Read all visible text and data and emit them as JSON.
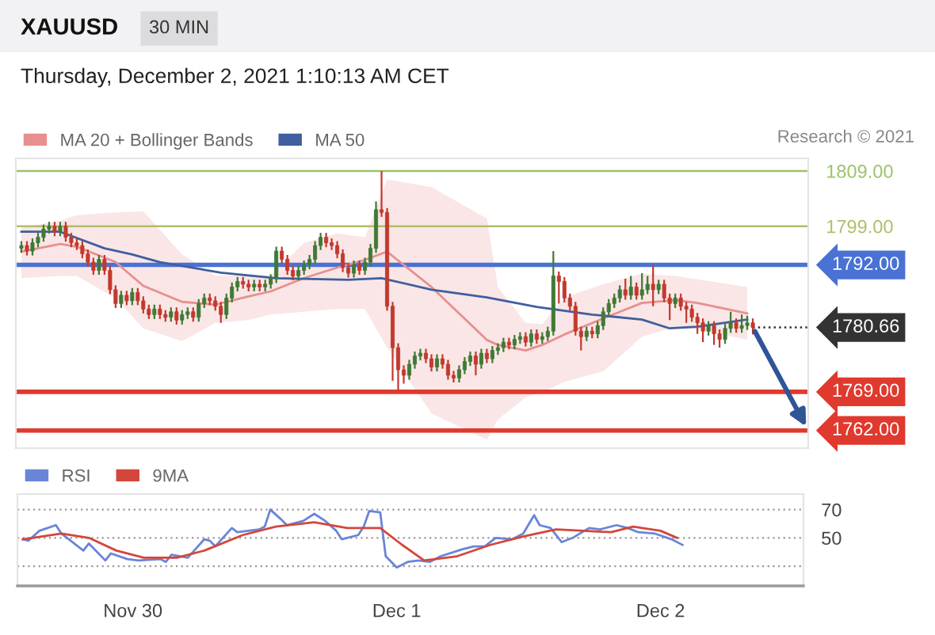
{
  "chart_data": [
    {
      "type": "candlestick",
      "title": "XAUUSD",
      "subtitle": "30 MIN",
      "annotations": [
        "Thursday, December 2, 2021 1:10:13 AM CET",
        "Research © 2021"
      ],
      "x": [
        "2021-11-29T14:00",
        "2021-11-29T14:30",
        "2021-11-29T15:00",
        "2021-11-29T15:30",
        "2021-11-29T16:00",
        "2021-11-29T16:30",
        "2021-11-29T17:00",
        "2021-11-29T17:30",
        "2021-11-29T18:00",
        "2021-11-29T18:30",
        "2021-11-29T19:00",
        "2021-11-29T19:30",
        "2021-11-29T20:00",
        "2021-11-29T20:30",
        "2021-11-29T21:00",
        "2021-11-29T21:30",
        "2021-11-29T22:00",
        "2021-11-29T22:30",
        "2021-11-29T23:00",
        "2021-11-29T23:30",
        "2021-11-30T00:00",
        "2021-11-30T00:30",
        "2021-11-30T01:00",
        "2021-11-30T01:30",
        "2021-11-30T02:00",
        "2021-11-30T02:30",
        "2021-11-30T03:00",
        "2021-11-30T03:30",
        "2021-11-30T04:00",
        "2021-11-30T04:30",
        "2021-11-30T05:00",
        "2021-11-30T05:30",
        "2021-11-30T06:00",
        "2021-11-30T06:30",
        "2021-11-30T07:00",
        "2021-11-30T07:30",
        "2021-11-30T08:00",
        "2021-11-30T08:30",
        "2021-11-30T09:00",
        "2021-11-30T09:30",
        "2021-11-30T10:00",
        "2021-11-30T10:30",
        "2021-11-30T11:00",
        "2021-11-30T11:30",
        "2021-11-30T12:00",
        "2021-11-30T12:30",
        "2021-11-30T13:00",
        "2021-11-30T13:30",
        "2021-11-30T14:00",
        "2021-11-30T14:30",
        "2021-11-30T15:00",
        "2021-11-30T15:30",
        "2021-11-30T16:00",
        "2021-11-30T16:30",
        "2021-11-30T17:00",
        "2021-11-30T17:30",
        "2021-11-30T18:00",
        "2021-11-30T18:30",
        "2021-11-30T19:00",
        "2021-11-30T19:30",
        "2021-11-30T20:00",
        "2021-11-30T20:30",
        "2021-11-30T21:00",
        "2021-11-30T21:30",
        "2021-11-30T22:00",
        "2021-11-30T22:30",
        "2021-11-30T23:00",
        "2021-11-30T23:30",
        "2021-12-01T00:00",
        "2021-12-01T00:30",
        "2021-12-01T01:00",
        "2021-12-01T01:30",
        "2021-12-01T02:00",
        "2021-12-01T02:30",
        "2021-12-01T03:00",
        "2021-12-01T03:30",
        "2021-12-01T04:00",
        "2021-12-01T04:30",
        "2021-12-01T05:00",
        "2021-12-01T05:30",
        "2021-12-01T06:00",
        "2021-12-01T06:30",
        "2021-12-01T07:00",
        "2021-12-01T07:30",
        "2021-12-01T08:00",
        "2021-12-01T08:30",
        "2021-12-01T09:00",
        "2021-12-01T09:30",
        "2021-12-01T10:00",
        "2021-12-01T10:30",
        "2021-12-01T11:00",
        "2021-12-01T11:30",
        "2021-12-01T12:00",
        "2021-12-01T12:30",
        "2021-12-01T13:00",
        "2021-12-01T13:30",
        "2021-12-01T14:00",
        "2021-12-01T14:30",
        "2021-12-01T15:00",
        "2021-12-01T15:30",
        "2021-12-01T16:00",
        "2021-12-01T16:30",
        "2021-12-01T17:00",
        "2021-12-01T17:30",
        "2021-12-01T18:00",
        "2021-12-01T18:30",
        "2021-12-01T19:00",
        "2021-12-01T19:30",
        "2021-12-01T20:00",
        "2021-12-01T20:30",
        "2021-12-01T21:00",
        "2021-12-01T21:30",
        "2021-12-01T22:00",
        "2021-12-01T22:30",
        "2021-12-01T23:00",
        "2021-12-01T23:30",
        "2021-12-02T00:00",
        "2021-12-02T00:30",
        "2021-12-02T01:00",
        "2021-12-02T01:30",
        "2021-12-02T02:00",
        "2021-12-02T02:30",
        "2021-12-02T03:00",
        "2021-12-02T03:30",
        "2021-12-02T04:00",
        "2021-12-02T04:30",
        "2021-12-02T05:00",
        "2021-12-02T05:30",
        "2021-12-02T06:00",
        "2021-12-02T06:30",
        "2021-12-02T07:00",
        "2021-12-02T07:30",
        "2021-12-02T08:00"
      ],
      "ohlc": [
        [
          1795.0,
          1796.3,
          1794.2,
          1795.5
        ],
        [
          1795.5,
          1796.3,
          1793.7,
          1794.5
        ],
        [
          1794.5,
          1796.8,
          1793.7,
          1796.0
        ],
        [
          1796.0,
          1797.8,
          1795.2,
          1797.0
        ],
        [
          1797.0,
          1799.3,
          1796.2,
          1798.5
        ],
        [
          1798.5,
          1799.8,
          1797.7,
          1799.0
        ],
        [
          1799.0,
          1799.8,
          1797.2,
          1798.0
        ],
        [
          1798.0,
          1799.8,
          1797.2,
          1799.0
        ],
        [
          1799.0,
          1799.8,
          1796.2,
          1797.0
        ],
        [
          1797.0,
          1797.8,
          1795.2,
          1796.0
        ],
        [
          1796.0,
          1796.8,
          1794.7,
          1795.5
        ],
        [
          1795.5,
          1796.3,
          1793.2,
          1794.0
        ],
        [
          1794.0,
          1794.8,
          1791.7,
          1792.5
        ],
        [
          1792.5,
          1793.3,
          1790.2,
          1791.0
        ],
        [
          1791.0,
          1793.8,
          1790.2,
          1793.0
        ],
        [
          1793.0,
          1793.8,
          1790.2,
          1791.0
        ],
        [
          1791.0,
          1791.8,
          1786.7,
          1787.5
        ],
        [
          1787.5,
          1788.3,
          1784.2,
          1785.0
        ],
        [
          1785.0,
          1787.3,
          1784.2,
          1786.5
        ],
        [
          1786.5,
          1787.3,
          1784.7,
          1785.5
        ],
        [
          1785.5,
          1787.8,
          1784.7,
          1787.0
        ],
        [
          1787.0,
          1787.8,
          1784.7,
          1785.5
        ],
        [
          1785.5,
          1786.3,
          1783.2,
          1784.0
        ],
        [
          1784.0,
          1784.8,
          1782.2,
          1783.0
        ],
        [
          1783.0,
          1784.8,
          1782.2,
          1784.0
        ],
        [
          1784.0,
          1784.8,
          1782.2,
          1783.0
        ],
        [
          1783.0,
          1783.8,
          1781.7,
          1782.5
        ],
        [
          1782.5,
          1784.3,
          1781.7,
          1783.5
        ],
        [
          1783.5,
          1784.3,
          1781.2,
          1782.0
        ],
        [
          1782.0,
          1783.8,
          1781.2,
          1783.0
        ],
        [
          1783.0,
          1784.3,
          1782.2,
          1783.5
        ],
        [
          1783.5,
          1784.3,
          1781.7,
          1782.5
        ],
        [
          1782.5,
          1785.8,
          1781.7,
          1785.0
        ],
        [
          1785.0,
          1786.8,
          1784.2,
          1786.0
        ],
        [
          1786.0,
          1786.8,
          1784.7,
          1785.5
        ],
        [
          1785.5,
          1786.3,
          1783.7,
          1784.5
        ],
        [
          1784.5,
          1785.3,
          1781.5,
          1783.0
        ],
        [
          1783.0,
          1786.8,
          1782.2,
          1786.0
        ],
        [
          1786.0,
          1788.8,
          1785.2,
          1788.0
        ],
        [
          1788.0,
          1789.8,
          1787.2,
          1789.0
        ],
        [
          1789.0,
          1789.8,
          1787.7,
          1788.5
        ],
        [
          1788.5,
          1789.3,
          1787.2,
          1788.0
        ],
        [
          1788.0,
          1789.3,
          1787.2,
          1788.5
        ],
        [
          1788.5,
          1789.3,
          1787.2,
          1788.0
        ],
        [
          1788.0,
          1789.3,
          1787.2,
          1788.5
        ],
        [
          1788.5,
          1790.3,
          1787.7,
          1789.5
        ],
        [
          1789.5,
          1795.3,
          1788.7,
          1794.5
        ],
        [
          1794.5,
          1795.3,
          1792.2,
          1793.0
        ],
        [
          1793.0,
          1793.8,
          1790.2,
          1791.0
        ],
        [
          1791.0,
          1791.8,
          1789.2,
          1790.0
        ],
        [
          1790.0,
          1791.8,
          1789.2,
          1791.0
        ],
        [
          1791.0,
          1792.8,
          1790.2,
          1792.0
        ],
        [
          1792.0,
          1793.8,
          1791.2,
          1793.0
        ],
        [
          1793.0,
          1796.3,
          1792.2,
          1795.5
        ],
        [
          1795.5,
          1797.8,
          1794.7,
          1797.0
        ],
        [
          1797.0,
          1797.8,
          1795.2,
          1796.0
        ],
        [
          1796.0,
          1796.8,
          1794.7,
          1795.5
        ],
        [
          1795.5,
          1796.3,
          1793.2,
          1794.0
        ],
        [
          1794.0,
          1794.8,
          1790.7,
          1791.5
        ],
        [
          1791.5,
          1792.3,
          1789.7,
          1790.5
        ],
        [
          1790.5,
          1792.8,
          1789.7,
          1792.0
        ],
        [
          1792.0,
          1792.8,
          1790.2,
          1791.0
        ],
        [
          1791.0,
          1793.3,
          1790.2,
          1792.5
        ],
        [
          1792.5,
          1795.8,
          1791.7,
          1795.0
        ],
        [
          1795.0,
          1803.5,
          1794.2,
          1802.0
        ],
        [
          1802.0,
          1809.0,
          1800.7,
          1801.5
        ],
        [
          1801.5,
          1802.3,
          1783.7,
          1784.5
        ],
        [
          1784.5,
          1785.3,
          1771.0,
          1777.0
        ],
        [
          1777.0,
          1777.8,
          1769.2,
          1773.0
        ],
        [
          1773.0,
          1773.8,
          1770.5,
          1772.0
        ],
        [
          1772.0,
          1774.8,
          1771.2,
          1774.0
        ],
        [
          1774.0,
          1776.3,
          1773.2,
          1775.5
        ],
        [
          1775.5,
          1776.8,
          1774.7,
          1776.0
        ],
        [
          1776.0,
          1776.8,
          1774.2,
          1775.0
        ],
        [
          1775.0,
          1775.8,
          1772.7,
          1773.5
        ],
        [
          1773.5,
          1775.8,
          1772.7,
          1775.0
        ],
        [
          1775.0,
          1775.8,
          1773.2,
          1774.0
        ],
        [
          1774.0,
          1774.8,
          1771.2,
          1772.0
        ],
        [
          1772.0,
          1772.8,
          1770.7,
          1771.5
        ],
        [
          1771.5,
          1773.8,
          1770.7,
          1773.0
        ],
        [
          1773.0,
          1775.3,
          1772.2,
          1774.5
        ],
        [
          1774.5,
          1776.3,
          1773.7,
          1775.5
        ],
        [
          1775.5,
          1776.3,
          1772.0,
          1774.0
        ],
        [
          1774.0,
          1776.8,
          1773.2,
          1776.0
        ],
        [
          1776.0,
          1776.8,
          1774.2,
          1775.0
        ],
        [
          1775.0,
          1777.3,
          1774.2,
          1776.5
        ],
        [
          1776.5,
          1777.8,
          1775.7,
          1777.0
        ],
        [
          1777.0,
          1778.8,
          1776.2,
          1778.0
        ],
        [
          1778.0,
          1778.8,
          1776.7,
          1777.5
        ],
        [
          1777.5,
          1779.3,
          1776.7,
          1778.5
        ],
        [
          1778.5,
          1779.8,
          1777.7,
          1779.0
        ],
        [
          1779.0,
          1779.8,
          1777.2,
          1778.0
        ],
        [
          1778.0,
          1780.3,
          1777.2,
          1779.5
        ],
        [
          1779.5,
          1780.3,
          1777.7,
          1778.5
        ],
        [
          1778.5,
          1779.8,
          1777.7,
          1779.0
        ],
        [
          1779.0,
          1780.8,
          1778.2,
          1780.0
        ],
        [
          1780.0,
          1794.5,
          1779.2,
          1790.0
        ],
        [
          1790.0,
          1790.8,
          1785.0,
          1789.0
        ],
        [
          1789.0,
          1789.8,
          1785.2,
          1786.0
        ],
        [
          1786.0,
          1786.8,
          1783.7,
          1784.5
        ],
        [
          1784.5,
          1785.3,
          1779.2,
          1780.0
        ],
        [
          1780.0,
          1780.8,
          1776.5,
          1779.0
        ],
        [
          1779.0,
          1780.8,
          1778.2,
          1780.0
        ],
        [
          1780.0,
          1780.8,
          1778.7,
          1779.5
        ],
        [
          1779.5,
          1781.8,
          1778.7,
          1781.0
        ],
        [
          1781.0,
          1784.3,
          1780.2,
          1783.5
        ],
        [
          1783.5,
          1785.8,
          1782.7,
          1785.0
        ],
        [
          1785.0,
          1786.8,
          1784.2,
          1786.0
        ],
        [
          1786.0,
          1788.3,
          1785.2,
          1787.5
        ],
        [
          1787.5,
          1789.5,
          1785.7,
          1786.5
        ],
        [
          1786.5,
          1790.0,
          1785.7,
          1788.0
        ],
        [
          1788.0,
          1788.8,
          1785.7,
          1786.5
        ],
        [
          1786.5,
          1790.5,
          1785.7,
          1787.5
        ],
        [
          1787.5,
          1790.0,
          1786.7,
          1788.5
        ],
        [
          1788.5,
          1792.0,
          1784.5,
          1787.5
        ],
        [
          1787.5,
          1789.3,
          1786.7,
          1788.5
        ],
        [
          1788.5,
          1789.3,
          1785.2,
          1786.0
        ],
        [
          1786.0,
          1786.8,
          1782.0,
          1785.0
        ],
        [
          1785.0,
          1786.8,
          1784.2,
          1786.0
        ],
        [
          1786.0,
          1786.8,
          1783.7,
          1784.5
        ],
        [
          1784.5,
          1785.3,
          1781.5,
          1784.0
        ],
        [
          1784.0,
          1784.8,
          1781.7,
          1782.5
        ],
        [
          1782.5,
          1783.3,
          1779.5,
          1781.5
        ],
        [
          1781.5,
          1782.3,
          1778.0,
          1780.0
        ],
        [
          1780.0,
          1781.8,
          1779.2,
          1781.0
        ],
        [
          1781.0,
          1781.8,
          1777.5,
          1779.5
        ],
        [
          1779.5,
          1780.3,
          1777.0,
          1778.5
        ],
        [
          1778.5,
          1781.3,
          1777.7,
          1780.5
        ],
        [
          1780.5,
          1783.5,
          1779.7,
          1781.5
        ],
        [
          1781.5,
          1782.3,
          1779.7,
          1780.5
        ],
        [
          1780.5,
          1783.0,
          1779.7,
          1781.0
        ],
        [
          1781.0,
          1782.8,
          1780.2,
          1781.5
        ],
        [
          1781.5,
          1782.3,
          1779.4,
          1780.66
        ]
      ],
      "colors": [
        "#3f7a35",
        "#c3392e",
        "#3f7a35",
        "#3f7a35",
        "#3f7a35",
        "#3f7a35",
        "#c3392e",
        "#3f7a35",
        "#c3392e",
        "#c3392e",
        "#c3392e",
        "#c3392e",
        "#c3392e",
        "#c3392e",
        "#3f7a35",
        "#c3392e",
        "#c3392e",
        "#c3392e",
        "#3f7a35",
        "#c3392e",
        "#3f7a35",
        "#c3392e",
        "#c3392e",
        "#c3392e",
        "#3f7a35",
        "#c3392e",
        "#c3392e",
        "#3f7a35",
        "#c3392e",
        "#3f7a35",
        "#3f7a35",
        "#c3392e",
        "#3f7a35",
        "#3f7a35",
        "#c3392e",
        "#c3392e",
        "#c3392e",
        "#3f7a35",
        "#3f7a35",
        "#3f7a35",
        "#c3392e",
        "#c3392e",
        "#3f7a35",
        "#c3392e",
        "#3f7a35",
        "#3f7a35",
        "#3f7a35",
        "#c3392e",
        "#c3392e",
        "#c3392e",
        "#3f7a35",
        "#3f7a35",
        "#3f7a35",
        "#3f7a35",
        "#3f7a35",
        "#c3392e",
        "#c3392e",
        "#c3392e",
        "#c3392e",
        "#c3392e",
        "#3f7a35",
        "#c3392e",
        "#3f7a35",
        "#3f7a35",
        "#3f7a35",
        "#c3392e",
        "#c3392e",
        "#c3392e",
        "#c3392e",
        "#c3392e",
        "#3f7a35",
        "#3f7a35",
        "#3f7a35",
        "#c3392e",
        "#c3392e",
        "#3f7a35",
        "#c3392e",
        "#c3392e",
        "#c3392e",
        "#3f7a35",
        "#3f7a35",
        "#3f7a35",
        "#c3392e",
        "#3f7a35",
        "#c3392e",
        "#3f7a35",
        "#3f7a35",
        "#3f7a35",
        "#c3392e",
        "#3f7a35",
        "#3f7a35",
        "#c3392e",
        "#3f7a35",
        "#c3392e",
        "#3f7a35",
        "#3f7a35",
        "#3f7a35",
        "#c3392e",
        "#c3392e",
        "#c3392e",
        "#c3392e",
        "#c3392e",
        "#3f7a35",
        "#c3392e",
        "#3f7a35",
        "#3f7a35",
        "#3f7a35",
        "#3f7a35",
        "#3f7a35",
        "#c3392e",
        "#3f7a35",
        "#c3392e",
        "#3f7a35",
        "#3f7a35",
        "#c3392e",
        "#3f7a35",
        "#c3392e",
        "#c3392e",
        "#3f7a35",
        "#c3392e",
        "#c3392e",
        "#c3392e",
        "#c3392e",
        "#c3392e",
        "#3f7a35",
        "#c3392e",
        "#c3392e",
        "#3f7a35",
        "#3f7a35",
        "#c3392e",
        "#3f7a35",
        "#3f7a35",
        "#c3392e"
      ],
      "series": [
        {
          "name": "MA 20 + Bollinger Bands",
          "type": "line",
          "color": "#e88f8f",
          "x": [
            "2021-11-29T14:00",
            "2021-11-29T17:30",
            "2021-11-29T19:00",
            "2021-11-29T22:30",
            "2021-11-30T01:00",
            "2021-11-30T04:30",
            "2021-11-30T07:30",
            "2021-11-30T10:30",
            "2021-11-30T12:30",
            "2021-11-30T15:30",
            "2021-11-30T18:30",
            "2021-11-30T21:00",
            "2021-11-30T23:00",
            "2021-12-01T03:00",
            "2021-12-01T08:00",
            "2021-12-01T09:00",
            "2021-12-01T11:30",
            "2021-12-01T13:00",
            "2021-12-01T15:00",
            "2021-12-01T18:30",
            "2021-12-01T22:00",
            "2021-12-02T01:00",
            "2021-12-02T03:00",
            "2021-12-02T07:30"
          ],
          "values": [
            1794.4,
            1795.8,
            1795.3,
            1792.5,
            1788.2,
            1785.3,
            1784.8,
            1786.3,
            1787.2,
            1789.6,
            1791.5,
            1792.9,
            1794.4,
            1788.0,
            1778.4,
            1777.5,
            1776.5,
            1777.5,
            1779.4,
            1782.3,
            1785.1,
            1785.6,
            1785.1,
            1783.2
          ],
          "lower": [
            1789.6,
            1790,
            1790,
            1786,
            1780.5,
            1778.2,
            1781.5,
            1782,
            1783,
            1783.5,
            1784,
            1784,
            1777,
            1765.1,
            1760.3,
            1764,
            1768,
            1768.9,
            1770.8,
            1772.7,
            1779,
            1780.8,
            1780.3,
            1778.4
          ],
          "upper": [
            1798.7,
            1800,
            1801,
            1801.5,
            1801.7,
            1793.9,
            1790.1,
            1790,
            1790.1,
            1796,
            1797.7,
            1797,
            1807.5,
            1806.1,
            1800.4,
            1788,
            1781.5,
            1781.3,
            1786.1,
            1788.5,
            1790.4,
            1790,
            1789.4,
            1788.0
          ]
        },
        {
          "name": "MA 50",
          "type": "line",
          "color": "#3f5f9e",
          "x": [
            "2021-11-29T14:00",
            "2021-11-29T17:30",
            "2021-11-29T21:30",
            "2021-11-30T00:00",
            "2021-11-30T02:30",
            "2021-11-30T08:00",
            "2021-11-30T13:00",
            "2021-11-30T19:30",
            "2021-11-30T22:30",
            "2021-12-01T03:00",
            "2021-12-01T08:00",
            "2021-12-01T12:30",
            "2021-12-01T17:30",
            "2021-12-01T22:00",
            "2021-12-02T00:30",
            "2021-12-02T03:00",
            "2021-12-02T07:30"
          ],
          "values": [
            1798.0,
            1798.0,
            1795.0,
            1793.9,
            1792.5,
            1790.6,
            1789.6,
            1789.3,
            1789.6,
            1787.5,
            1786.1,
            1784.4,
            1783.0,
            1782.1,
            1780.5,
            1780.8,
            1782.1
          ]
        }
      ],
      "xlim": [
        "2021-11-29T13:30",
        "2021-12-02T13:00"
      ],
      "ylim": [
        1758.8,
        1811.3
      ],
      "yticks": [
        {
          "value": 1799,
          "label": "1799.00"
        },
        {
          "value": 1809,
          "label": "1809.00"
        }
      ],
      "tick_labels": "y",
      "ref_lines": [
        {
          "axis": "y",
          "value": 1809,
          "color": "#9cc26a"
        },
        {
          "axis": "y",
          "value": 1799,
          "color": "#b3bd6a"
        },
        {
          "axis": "y",
          "value": 1792,
          "label": "1792.00",
          "color": "#4a72d4"
        },
        {
          "axis": "y",
          "value": 1780.66,
          "label": "1780.66",
          "color": "#333333",
          "line_style": "dotted"
        },
        {
          "axis": "y",
          "value": 1769,
          "label": "1769.00",
          "color": "#e0392e"
        },
        {
          "axis": "y",
          "value": 1762,
          "label": "1762.00",
          "color": "#e0392e"
        }
      ],
      "legend": "top left"
    },
    {
      "type": "line",
      "series": [
        {
          "name": "RSI",
          "color": "#6a84d8",
          "x": [
            "2021-11-29T14:00",
            "2021-11-29T14:30",
            "2021-11-29T15:30",
            "2021-11-29T17:00",
            "2021-11-29T17:30",
            "2021-11-29T18:30",
            "2021-11-29T19:30",
            "2021-11-29T20:00",
            "2021-11-29T21:30",
            "2021-11-29T22:00",
            "2021-11-29T23:30",
            "2021-11-30T00:30",
            "2021-11-30T02:30",
            "2021-11-30T03:00",
            "2021-11-30T03:30",
            "2021-11-30T05:00",
            "2021-11-30T06:30",
            "2021-11-30T07:00",
            "2021-11-30T07:30",
            "2021-11-30T09:00",
            "2021-11-30T09:30",
            "2021-11-30T11:30",
            "2021-11-30T12:00",
            "2021-11-30T12:30",
            "2021-11-30T13:30",
            "2021-11-30T14:00",
            "2021-11-30T15:30",
            "2021-11-30T16:30",
            "2021-11-30T17:30",
            "2021-11-30T18:30",
            "2021-11-30T19:00",
            "2021-11-30T20:30",
            "2021-11-30T21:00",
            "2021-11-30T21:30",
            "2021-11-30T22:30",
            "2021-11-30T23:00",
            "2021-12-01T00:00",
            "2021-12-01T01:00",
            "2021-12-01T02:00",
            "2021-12-01T03:00",
            "2021-12-01T04:00",
            "2021-12-01T06:00",
            "2021-12-01T07:00",
            "2021-12-01T08:00",
            "2021-12-01T09:00",
            "2021-12-01T10:30",
            "2021-12-01T11:30",
            "2021-12-01T12:30",
            "2021-12-01T13:00",
            "2021-12-01T14:00",
            "2021-12-01T15:00",
            "2021-12-01T16:00",
            "2021-12-01T17:30",
            "2021-12-01T18:30",
            "2021-12-01T20:00",
            "2021-12-01T21:00",
            "2021-12-01T22:00",
            "2021-12-01T23:30",
            "2021-12-02T01:00",
            "2021-12-02T02:00"
          ],
          "values": [
            49,
            48,
            55,
            59,
            53,
            47,
            41,
            46,
            34,
            39,
            35,
            34,
            35,
            33,
            38,
            36,
            49,
            48,
            44,
            57,
            54,
            56,
            58,
            70,
            63,
            59,
            62,
            67,
            62,
            55,
            49,
            52,
            58,
            69,
            68,
            37,
            29,
            33,
            34,
            33,
            37,
            42,
            44,
            44,
            50,
            49,
            53,
            66,
            59,
            57,
            47,
            50,
            57,
            56,
            59,
            57,
            54,
            53,
            49,
            45
          ]
        },
        {
          "name": "9MA",
          "color": "#d4463b",
          "x": [
            "2021-11-29T14:00",
            "2021-11-29T17:30",
            "2021-11-29T20:00",
            "2021-11-29T22:30",
            "2021-11-30T01:00",
            "2021-11-30T04:00",
            "2021-11-30T06:30",
            "2021-11-30T10:00",
            "2021-11-30T13:00",
            "2021-11-30T16:30",
            "2021-11-30T19:30",
            "2021-11-30T22:30",
            "2021-12-01T00:30",
            "2021-12-01T02:30",
            "2021-12-01T05:30",
            "2021-12-01T08:30",
            "2021-12-01T11:30",
            "2021-12-01T14:30",
            "2021-12-01T17:00",
            "2021-12-01T19:30",
            "2021-12-01T21:30",
            "2021-12-02T00:00",
            "2021-12-02T01:30"
          ],
          "values": [
            49,
            53,
            50,
            41,
            36,
            36,
            41,
            52,
            58,
            61,
            57,
            57,
            45,
            34,
            37,
            45,
            51,
            56,
            55,
            54,
            58,
            55,
            50
          ]
        }
      ],
      "xlim": [
        "2021-11-29T13:30",
        "2021-12-02T13:00"
      ],
      "xticks": [
        {
          "value": "2021-11-30",
          "label": "Nov 30"
        },
        {
          "value": "2021-12-01",
          "label": "Dec 1"
        },
        {
          "value": "2021-12-02",
          "label": "Dec 2"
        }
      ],
      "ylim": [
        16,
        81
      ],
      "yticks": [
        {
          "value": 30,
          "label": null
        },
        50,
        70
      ],
      "grid": "y",
      "legend": "top left"
    }
  ]
}
